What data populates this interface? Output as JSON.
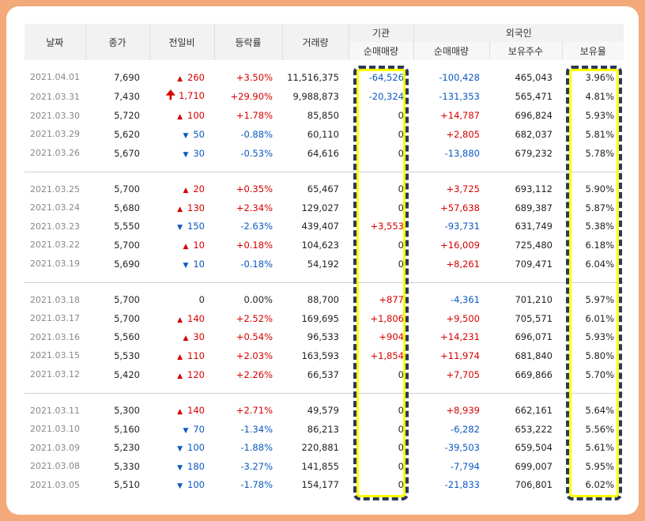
{
  "headers": {
    "date": "날짜",
    "close": "종가",
    "change": "전일비",
    "rate": "등락률",
    "volume": "거래량",
    "institution": "기관",
    "foreign": "외국인",
    "inst_net": "순매매량",
    "for_net": "순매매량",
    "holdings": "보유주수",
    "hold_rate": "보유율"
  },
  "groups": [
    [
      {
        "date": "2021.04.01",
        "close": "7,690",
        "dir": "up",
        "change": "260",
        "rate": "+3.50%",
        "volume": "11,516,375",
        "inst": "-64,526",
        "forn": "-100,428",
        "hold": "465,043",
        "hrate": "3.96%"
      },
      {
        "date": "2021.03.31",
        "close": "7,430",
        "dir": "limit",
        "change": "1,710",
        "rate": "+29.90%",
        "volume": "9,988,873",
        "inst": "-20,324",
        "forn": "-131,353",
        "hold": "565,471",
        "hrate": "4.81%"
      },
      {
        "date": "2021.03.30",
        "close": "5,720",
        "dir": "up",
        "change": "100",
        "rate": "+1.78%",
        "volume": "85,850",
        "inst": "0",
        "forn": "+14,787",
        "hold": "696,824",
        "hrate": "5.93%"
      },
      {
        "date": "2021.03.29",
        "close": "5,620",
        "dir": "down",
        "change": "50",
        "rate": "-0.88%",
        "volume": "60,110",
        "inst": "0",
        "forn": "+2,805",
        "hold": "682,037",
        "hrate": "5.81%"
      },
      {
        "date": "2021.03.26",
        "close": "5,670",
        "dir": "down",
        "change": "30",
        "rate": "-0.53%",
        "volume": "64,616",
        "inst": "0",
        "forn": "-13,880",
        "hold": "679,232",
        "hrate": "5.78%"
      }
    ],
    [
      {
        "date": "2021.03.25",
        "close": "5,700",
        "dir": "up",
        "change": "20",
        "rate": "+0.35%",
        "volume": "65,467",
        "inst": "0",
        "forn": "+3,725",
        "hold": "693,112",
        "hrate": "5.90%"
      },
      {
        "date": "2021.03.24",
        "close": "5,680",
        "dir": "up",
        "change": "130",
        "rate": "+2.34%",
        "volume": "129,027",
        "inst": "0",
        "forn": "+57,638",
        "hold": "689,387",
        "hrate": "5.87%"
      },
      {
        "date": "2021.03.23",
        "close": "5,550",
        "dir": "down",
        "change": "150",
        "rate": "-2.63%",
        "volume": "439,407",
        "inst": "+3,553",
        "forn": "-93,731",
        "hold": "631,749",
        "hrate": "5.38%"
      },
      {
        "date": "2021.03.22",
        "close": "5,700",
        "dir": "up",
        "change": "10",
        "rate": "+0.18%",
        "volume": "104,623",
        "inst": "0",
        "forn": "+16,009",
        "hold": "725,480",
        "hrate": "6.18%"
      },
      {
        "date": "2021.03.19",
        "close": "5,690",
        "dir": "down",
        "change": "10",
        "rate": "-0.18%",
        "volume": "54,192",
        "inst": "0",
        "forn": "+8,261",
        "hold": "709,471",
        "hrate": "6.04%"
      }
    ],
    [
      {
        "date": "2021.03.18",
        "close": "5,700",
        "dir": "flat",
        "change": "0",
        "rate": "0.00%",
        "volume": "88,700",
        "inst": "+877",
        "forn": "-4,361",
        "hold": "701,210",
        "hrate": "5.97%"
      },
      {
        "date": "2021.03.17",
        "close": "5,700",
        "dir": "up",
        "change": "140",
        "rate": "+2.52%",
        "volume": "169,695",
        "inst": "+1,806",
        "forn": "+9,500",
        "hold": "705,571",
        "hrate": "6.01%"
      },
      {
        "date": "2021.03.16",
        "close": "5,560",
        "dir": "up",
        "change": "30",
        "rate": "+0.54%",
        "volume": "96,533",
        "inst": "+904",
        "forn": "+14,231",
        "hold": "696,071",
        "hrate": "5.93%"
      },
      {
        "date": "2021.03.15",
        "close": "5,530",
        "dir": "up",
        "change": "110",
        "rate": "+2.03%",
        "volume": "163,593",
        "inst": "+1,854",
        "forn": "+11,974",
        "hold": "681,840",
        "hrate": "5.80%"
      },
      {
        "date": "2021.03.12",
        "close": "5,420",
        "dir": "up",
        "change": "120",
        "rate": "+2.26%",
        "volume": "66,537",
        "inst": "0",
        "forn": "+7,705",
        "hold": "669,866",
        "hrate": "5.70%"
      }
    ],
    [
      {
        "date": "2021.03.11",
        "close": "5,300",
        "dir": "up",
        "change": "140",
        "rate": "+2.71%",
        "volume": "49,579",
        "inst": "0",
        "forn": "+8,939",
        "hold": "662,161",
        "hrate": "5.64%"
      },
      {
        "date": "2021.03.10",
        "close": "5,160",
        "dir": "down",
        "change": "70",
        "rate": "-1.34%",
        "volume": "86,213",
        "inst": "0",
        "forn": "-6,282",
        "hold": "653,222",
        "hrate": "5.56%"
      },
      {
        "date": "2021.03.09",
        "close": "5,230",
        "dir": "down",
        "change": "100",
        "rate": "-1.88%",
        "volume": "220,881",
        "inst": "0",
        "forn": "-39,503",
        "hold": "659,504",
        "hrate": "5.61%"
      },
      {
        "date": "2021.03.08",
        "close": "5,330",
        "dir": "down",
        "change": "180",
        "rate": "-3.27%",
        "volume": "141,855",
        "inst": "0",
        "forn": "-7,794",
        "hold": "699,007",
        "hrate": "5.95%"
      },
      {
        "date": "2021.03.05",
        "close": "5,510",
        "dir": "down",
        "change": "100",
        "rate": "-1.78%",
        "volume": "154,177",
        "inst": "0",
        "forn": "-21,833",
        "hold": "706,801",
        "hrate": "6.02%"
      }
    ]
  ],
  "colors": {
    "up": "#d60000",
    "down": "#0a58c2",
    "highlight_border": "#2b3a55",
    "highlight_glow": "#ffff00",
    "frame": "#f4a97a"
  }
}
